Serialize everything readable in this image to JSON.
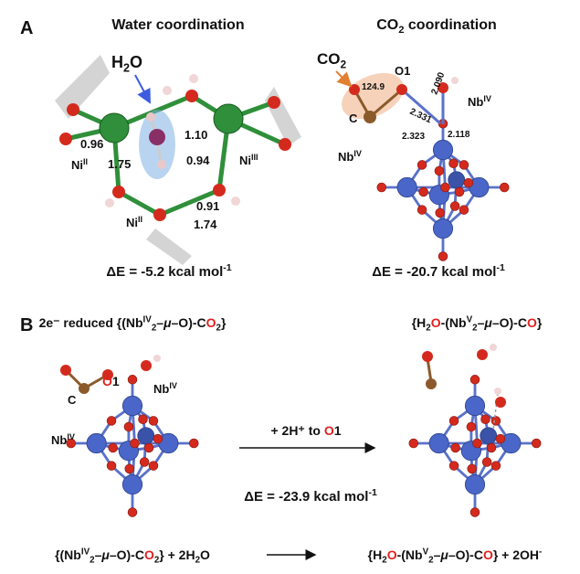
{
  "panel_a": {
    "label": "A",
    "left": {
      "title": "Water coordination",
      "water": [
        "H",
        "2",
        "O"
      ],
      "charges": [
        "0.96",
        "1.75",
        "1.10",
        "0.94",
        "0.91",
        "1.74"
      ],
      "ni_labels": [
        [
          "Ni",
          "II"
        ],
        [
          "Ni",
          "III"
        ],
        [
          "Ni",
          "II"
        ]
      ],
      "energy": [
        "ΔE = -5.2 kcal mol",
        "-1"
      ]
    },
    "right": {
      "title": [
        "CO",
        "2",
        " coordination"
      ],
      "co2": [
        "CO",
        "2"
      ],
      "angle": "124.9",
      "o1": "O1",
      "c": "C",
      "distances": [
        "2.090",
        "2.331",
        "2.323",
        "2.118"
      ],
      "nb_labels": [
        [
          "Nb",
          "IV"
        ],
        [
          "Nb",
          "IV"
        ]
      ],
      "energy": [
        "ΔE = -20.7 kcal mol",
        "-1"
      ]
    }
  },
  "panel_b": {
    "label": "B",
    "left_title": [
      "2e⁻ reduced {(Nb",
      "IV",
      "2",
      "–",
      "μ",
      "–O)-C",
      "O",
      "2",
      "}"
    ],
    "right_title": [
      "{H",
      "2",
      "O",
      "-(Nb",
      "V",
      "2",
      "–",
      "μ",
      "–O)-C",
      "O",
      "}"
    ],
    "o1": [
      "O",
      "1"
    ],
    "c": "C",
    "nb_labels": [
      [
        "Nb",
        "IV"
      ],
      [
        "Nb",
        "IV"
      ]
    ],
    "arrow_label": [
      "+ 2H⁺ to ",
      "O",
      "1"
    ],
    "energy": [
      "ΔE = -23.9 kcal mol",
      "-1"
    ],
    "equation_left": [
      "{(Nb",
      "IV",
      "2",
      "–",
      "μ",
      "–O)-C",
      "O",
      "2",
      "} + 2H",
      "2",
      "O"
    ],
    "equation_right": [
      "{H",
      "2",
      "O",
      "-(Nb",
      "V",
      "2",
      "–",
      "μ",
      "–O)-C",
      "O",
      "} + 2OH",
      "-"
    ]
  }
}
